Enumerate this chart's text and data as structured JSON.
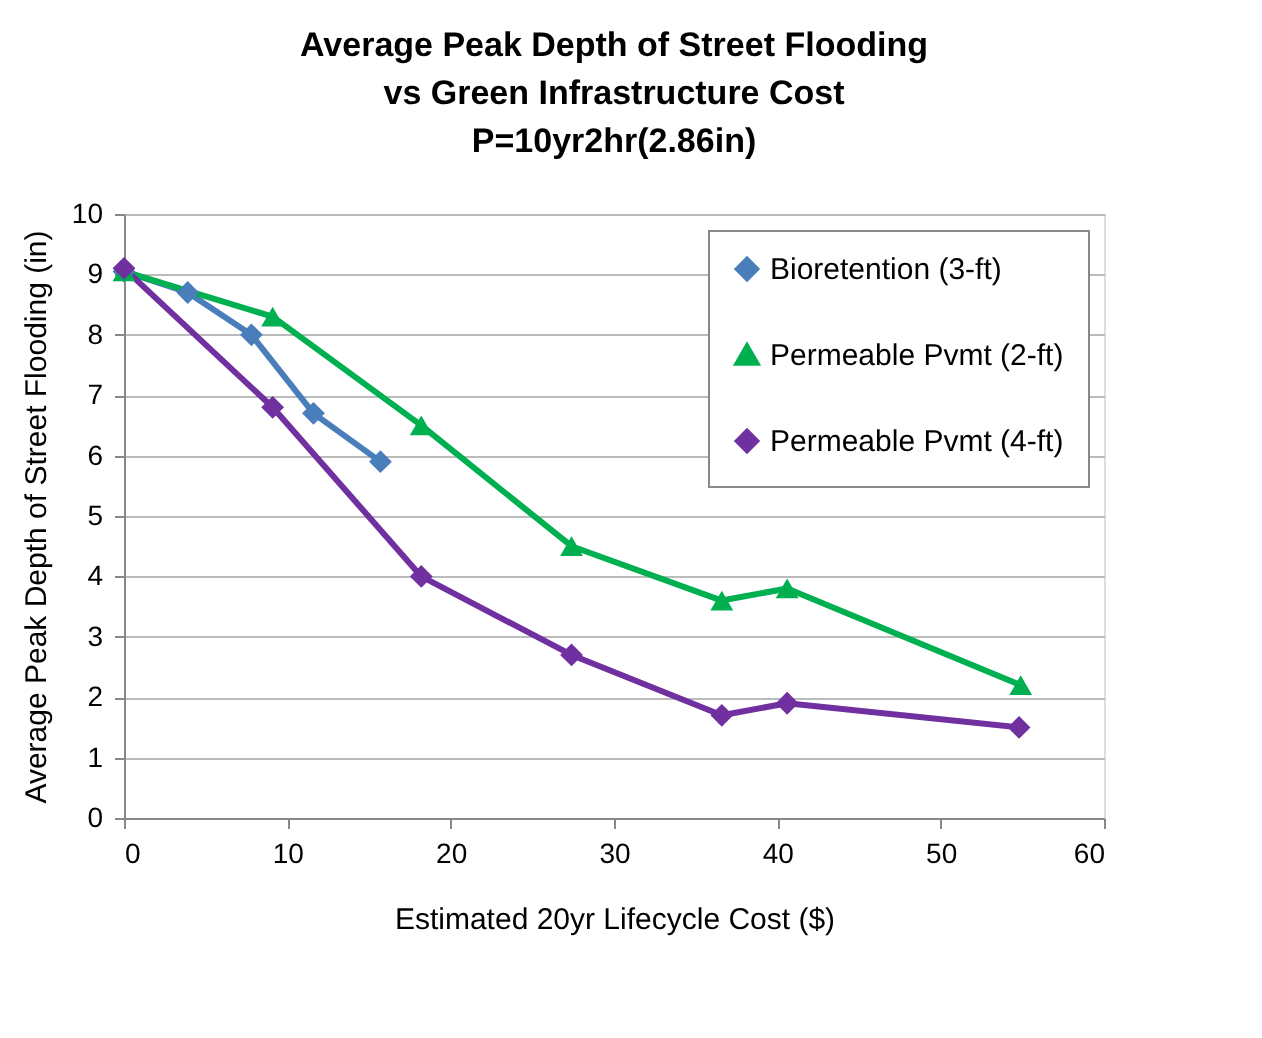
{
  "chart_data": {
    "type": "line",
    "title": "Average Peak Depth of Street Flooding\nvs  Green Infrastructure Cost\nP=10yr2hr(2.86in)",
    "xlabel": "Estimated 20yr Lifecycle Cost ($)",
    "ylabel": "Average Peak Depth of Street Flooding (in)",
    "series": [
      {
        "name": "Bioretention (3-ft)",
        "color": "#4a7ebb",
        "marker": "diamond",
        "x": [
          0,
          3.9,
          7.8,
          11.6,
          15.7
        ],
        "values": [
          9.05,
          8.7,
          8.0,
          6.7,
          5.9
        ]
      },
      {
        "name": "Permeable Pvmt (2-ft)",
        "color": "#00b050",
        "marker": "triangle",
        "x": [
          0,
          9.1,
          18.2,
          27.4,
          36.6,
          40.6,
          54.9
        ],
        "values": [
          9.05,
          8.3,
          6.5,
          4.5,
          3.6,
          3.8,
          2.2
        ]
      },
      {
        "name": "Permeable Pvmt (4-ft)",
        "color": "#7030a0",
        "marker": "diamond",
        "x": [
          0,
          9.1,
          18.2,
          27.4,
          36.6,
          40.6,
          54.8
        ],
        "values": [
          9.1,
          6.8,
          4.0,
          2.7,
          1.7,
          1.9,
          1.5
        ]
      }
    ],
    "xlim": [
      0,
      60
    ],
    "xticks": [
      0,
      10,
      20,
      30,
      40,
      50,
      60
    ],
    "ylim": [
      0,
      10
    ],
    "yticks": [
      0,
      1,
      2,
      3,
      4,
      5,
      6,
      7,
      8,
      9,
      10
    ],
    "grid": "y",
    "legend": "top right",
    "line_style": "solid"
  }
}
